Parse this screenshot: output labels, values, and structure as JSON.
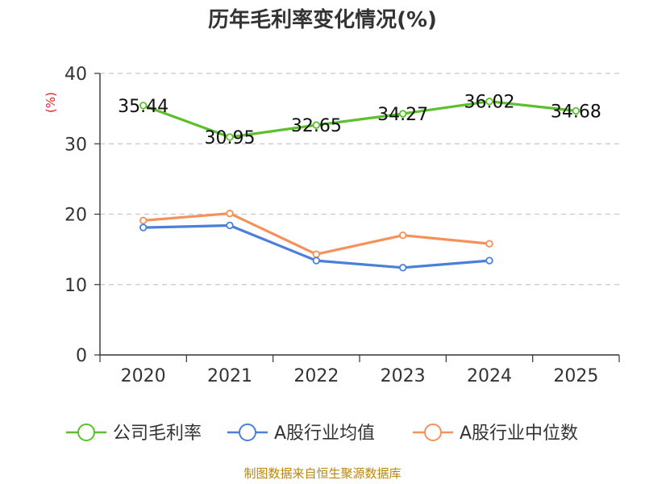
{
  "chart_data": {
    "type": "line",
    "title": "历年毛利率变化情况(%)",
    "ylabel": "(%)",
    "xlabel": "",
    "categories": [
      "2020",
      "2021",
      "2022",
      "2023",
      "2024",
      "2025"
    ],
    "ylim": [
      0,
      40
    ],
    "yticks": [
      0,
      10,
      20,
      30,
      40
    ],
    "grid": true,
    "legend_position": "bottom",
    "series": [
      {
        "name": "公司毛利率",
        "color": "#5cc02d",
        "values": [
          35.44,
          30.95,
          32.65,
          34.27,
          36.02,
          34.68
        ],
        "labels": [
          "35.44",
          "30.95",
          "32.65",
          "34.27",
          "36.02",
          "34.68"
        ]
      },
      {
        "name": "A股行业均值",
        "color": "#4a7fdc",
        "values": [
          18.1,
          18.4,
          13.4,
          12.4,
          13.4,
          null
        ]
      },
      {
        "name": "A股行业中位数",
        "color": "#f5915a",
        "values": [
          19.1,
          20.1,
          14.3,
          17.0,
          15.8,
          null
        ]
      }
    ]
  },
  "source_text": "制图数据来自恒生聚源数据库"
}
